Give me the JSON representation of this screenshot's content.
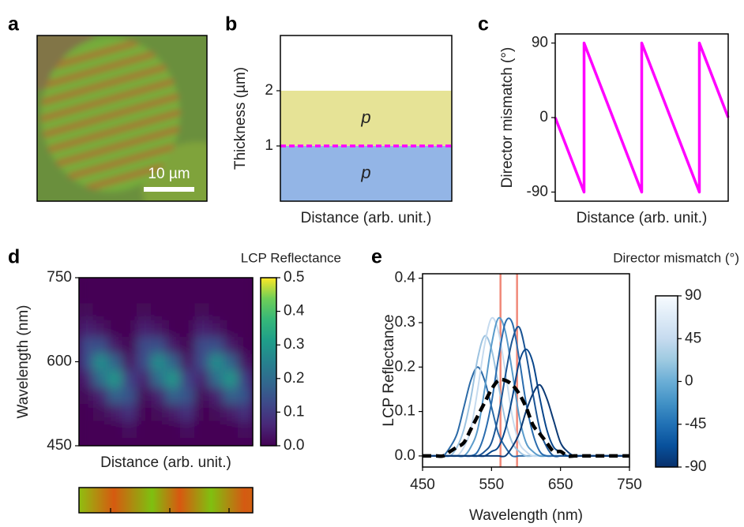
{
  "chart_data": [
    {
      "label": "a",
      "type": "image",
      "scale_bar": "10 µm"
    },
    {
      "label": "b",
      "type": "layers",
      "ylabel": "Thickness (µm)",
      "xlabel": "Distance (arb. unit.)",
      "ylim": [
        0,
        3
      ],
      "yticks": [
        1,
        2
      ],
      "layers": [
        {
          "name": "p",
          "range": [
            0,
            1
          ],
          "color": "#93b5e6"
        },
        {
          "name": "p",
          "range": [
            1,
            2
          ],
          "color": "#e6e396"
        }
      ],
      "interface": {
        "value": 1,
        "color": "#ff00ff"
      }
    },
    {
      "label": "c",
      "type": "line",
      "ylabel": "Director mismatch (°)",
      "xlabel": "Distance (arb. unit.)",
      "x": [
        0,
        0.5,
        0.5,
        1.5,
        1.5,
        2.5,
        2.5,
        3
      ],
      "values": [
        0,
        -90,
        90,
        -90,
        90,
        -90,
        90,
        0
      ],
      "color": "#ff00ff",
      "xlim": [
        0,
        3
      ],
      "ylim": [
        -101,
        101
      ],
      "yticks": [
        90,
        0,
        -90
      ]
    },
    {
      "label": "d",
      "type": "heatmap",
      "ylabel": "Wavelength (nm)",
      "xlabel": "Distance (arb. unit.)",
      "y": [
        450,
        480,
        510,
        540,
        570,
        600,
        630,
        660,
        690,
        720,
        750
      ],
      "z": [
        [
          0,
          0,
          0,
          0,
          0,
          0,
          0,
          0,
          0,
          0,
          0,
          0
        ],
        [
          0,
          0,
          0,
          0.02,
          0,
          0,
          0,
          0.02,
          0,
          0,
          0,
          0.02
        ],
        [
          0,
          0.01,
          0.04,
          0.08,
          0,
          0.01,
          0.04,
          0.08,
          0,
          0.01,
          0.04,
          0.08
        ],
        [
          0.01,
          0.05,
          0.18,
          0.15,
          0.01,
          0.05,
          0.18,
          0.15,
          0.01,
          0.05,
          0.18,
          0.15
        ],
        [
          0.05,
          0.2,
          0.3,
          0.11,
          0.05,
          0.2,
          0.3,
          0.11,
          0.05,
          0.2,
          0.3,
          0.11
        ],
        [
          0.13,
          0.28,
          0.18,
          0.03,
          0.13,
          0.28,
          0.18,
          0.03,
          0.13,
          0.28,
          0.18,
          0.03
        ],
        [
          0.13,
          0.14,
          0.04,
          0,
          0.13,
          0.14,
          0.04,
          0,
          0.13,
          0.14,
          0.04,
          0
        ],
        [
          0.05,
          0.03,
          0,
          0,
          0.05,
          0.03,
          0,
          0,
          0.05,
          0.03,
          0,
          0
        ],
        [
          0.01,
          0,
          0,
          0,
          0.01,
          0,
          0,
          0,
          0.01,
          0,
          0,
          0
        ],
        [
          0,
          0,
          0,
          0,
          0,
          0,
          0,
          0,
          0,
          0,
          0,
          0
        ],
        [
          0,
          0,
          0,
          0,
          0,
          0,
          0,
          0,
          0,
          0,
          0,
          0
        ]
      ],
      "ylim": [
        450,
        750
      ],
      "yticks": [
        450,
        600,
        750
      ],
      "colormap": "viridis",
      "colorbar": {
        "label": "LCP Reflectance",
        "lim": [
          0,
          0.5
        ],
        "ticks": [
          {
            "value": 0,
            "label": "0.0"
          },
          0.1,
          0.2,
          0.3,
          0.4,
          0.5
        ]
      }
    },
    {
      "label": "e",
      "type": "line",
      "curve": "smooth",
      "ylabel": "LCP Reflectance",
      "xlabel": "Wavelength (nm)",
      "x": [
        450,
        460,
        470,
        480,
        490,
        500,
        510,
        520,
        530,
        540,
        550,
        560,
        570,
        580,
        590,
        600,
        610,
        620,
        630,
        640,
        650,
        660,
        670,
        680,
        690,
        700,
        710,
        720,
        730,
        740,
        750
      ],
      "series": [
        {
          "color": "#2b6aa7",
          "values": [
            0,
            0,
            0,
            0,
            0.02,
            0.05,
            0.11,
            0.17,
            0.2,
            0.17,
            0.11,
            0.05,
            0.02,
            0,
            0,
            0,
            0,
            0,
            0,
            0,
            0,
            0,
            0,
            0,
            0,
            0,
            0,
            0,
            0,
            0,
            0
          ]
        },
        {
          "color": "#9dc3e0",
          "values": [
            0,
            0,
            0,
            0,
            0,
            0.02,
            0.06,
            0.13,
            0.22,
            0.27,
            0.24,
            0.16,
            0.08,
            0.03,
            0.01,
            0,
            0,
            0,
            0,
            0,
            0,
            0,
            0,
            0,
            0,
            0,
            0,
            0,
            0,
            0,
            0
          ]
        },
        {
          "color": "#c6dbef",
          "values": [
            0,
            0,
            0,
            0,
            0,
            0,
            0.02,
            0.06,
            0.15,
            0.25,
            0.31,
            0.28,
            0.19,
            0.09,
            0.03,
            0.01,
            0,
            0,
            0,
            0,
            0,
            0,
            0,
            0,
            0,
            0,
            0,
            0,
            0,
            0,
            0
          ]
        },
        {
          "color": "#5a9bcb",
          "values": [
            0,
            0,
            0,
            0,
            0,
            0,
            0,
            0.02,
            0.06,
            0.15,
            0.25,
            0.31,
            0.28,
            0.19,
            0.09,
            0.03,
            0.01,
            0,
            0,
            0,
            0,
            0,
            0,
            0,
            0,
            0,
            0,
            0,
            0,
            0,
            0
          ]
        },
        {
          "color": "#2a6cae",
          "values": [
            0,
            0,
            0,
            0,
            0,
            0,
            0,
            0,
            0.01,
            0.05,
            0.12,
            0.22,
            0.3,
            0.3,
            0.22,
            0.12,
            0.05,
            0.01,
            0,
            0,
            0,
            0,
            0,
            0,
            0,
            0,
            0,
            0,
            0,
            0,
            0
          ]
        },
        {
          "color": "#1b5494",
          "values": [
            0,
            0,
            0,
            0,
            0,
            0,
            0,
            0,
            0,
            0.01,
            0.03,
            0.09,
            0.18,
            0.26,
            0.29,
            0.23,
            0.14,
            0.06,
            0.02,
            0,
            0,
            0,
            0,
            0,
            0,
            0,
            0,
            0,
            0,
            0,
            0
          ]
        },
        {
          "color": "#08468b",
          "values": [
            0,
            0,
            0,
            0,
            0,
            0,
            0,
            0,
            0,
            0,
            0.01,
            0.02,
            0.06,
            0.13,
            0.21,
            0.24,
            0.21,
            0.13,
            0.06,
            0.02,
            0.01,
            0,
            0,
            0,
            0,
            0,
            0,
            0,
            0,
            0,
            0
          ]
        },
        {
          "color": "#0c3a75",
          "values": [
            0,
            0,
            0,
            0,
            0,
            0,
            0,
            0,
            0,
            0,
            0,
            0,
            0,
            0.02,
            0.05,
            0.1,
            0.14,
            0.16,
            0.13,
            0.08,
            0.03,
            0.01,
            0,
            0,
            0,
            0,
            0,
            0,
            0,
            0,
            0
          ]
        },
        {
          "color": "#000000",
          "dash": true,
          "values": [
            0,
            0,
            0,
            0,
            0.01,
            0.02,
            0.03,
            0.06,
            0.09,
            0.12,
            0.15,
            0.17,
            0.17,
            0.16,
            0.14,
            0.11,
            0.07,
            0.05,
            0.03,
            0.01,
            0.01,
            0,
            0,
            0,
            0,
            0,
            0,
            0,
            0,
            0,
            0
          ]
        }
      ],
      "vlines": [
        {
          "value": 563,
          "color": "#f08878"
        },
        {
          "value": 587,
          "color": "#f08878"
        }
      ],
      "xlim": [
        450,
        750
      ],
      "ylim": [
        -0.025,
        0.41
      ],
      "xticks": [
        450,
        550,
        650,
        750
      ],
      "yticks": [
        {
          "value": 0,
          "label": "0.0"
        },
        0.1,
        0.2,
        0.3,
        0.4
      ],
      "colorbar": {
        "label": "Director mismatch (°)",
        "lim": [
          -90,
          90
        ],
        "ticks": [
          90,
          45,
          0,
          -45,
          -90
        ],
        "colormap": "Blues"
      }
    }
  ]
}
